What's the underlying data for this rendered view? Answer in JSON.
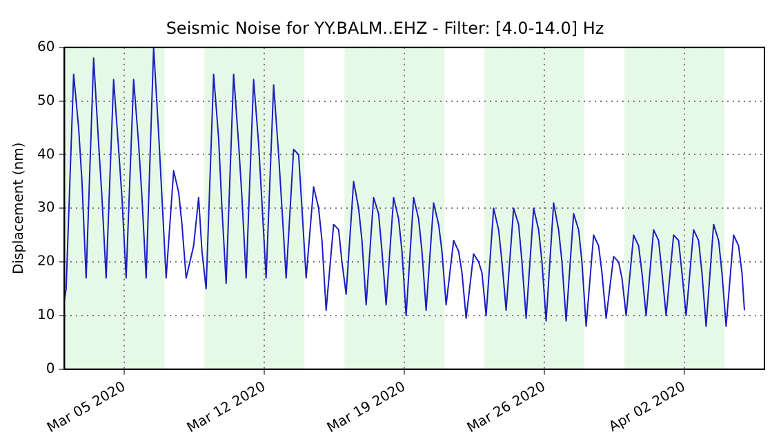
{
  "chart_data": {
    "type": "line",
    "title": "Seismic Noise for YY.BALM..EHZ - Filter: [4.0-14.0] Hz",
    "ylabel": "Displacement (nm)",
    "xlim": [
      "2020-03-02",
      "2020-04-06"
    ],
    "ylim": [
      0,
      60
    ],
    "xticks": [
      {
        "value": "2020-03-05",
        "label": "Mar 05 2020"
      },
      {
        "value": "2020-03-12",
        "label": "Mar 12 2020"
      },
      {
        "value": "2020-03-19",
        "label": "Mar 19 2020"
      },
      {
        "value": "2020-03-26",
        "label": "Mar 26 2020"
      },
      {
        "value": "2020-04-02",
        "label": "Apr 02 2020"
      }
    ],
    "yticks": [
      0,
      10,
      20,
      30,
      40,
      50,
      60
    ],
    "grid": true,
    "legend": false,
    "marker": "none",
    "line_style": "solid",
    "bands": [
      {
        "axis": "x",
        "from": "2020-03-02",
        "to": "2020-03-07",
        "color": "#e6f9e6"
      },
      {
        "axis": "x",
        "from": "2020-03-09",
        "to": "2020-03-14",
        "color": "#e6f9e6"
      },
      {
        "axis": "x",
        "from": "2020-03-16",
        "to": "2020-03-21",
        "color": "#e6f9e6"
      },
      {
        "axis": "x",
        "from": "2020-03-23",
        "to": "2020-03-28",
        "color": "#e6f9e6"
      },
      {
        "axis": "x",
        "from": "2020-03-30",
        "to": "2020-04-04",
        "color": "#e6f9e6"
      }
    ],
    "series": [
      {
        "color": "#1c1cc4",
        "x": [
          "2020-03-02T00:00",
          "2020-03-02T02:00",
          "2020-03-02T11:00",
          "2020-03-02T17:00",
          "2020-03-02T21:00",
          "2020-03-03T02:00",
          "2020-03-03T11:00",
          "2020-03-03T17:00",
          "2020-03-03T21:00",
          "2020-03-04T02:00",
          "2020-03-04T11:00",
          "2020-03-04T17:00",
          "2020-03-04T21:00",
          "2020-03-05T02:00",
          "2020-03-05T11:00",
          "2020-03-05T17:00",
          "2020-03-05T21:00",
          "2020-03-06T02:00",
          "2020-03-06T11:00",
          "2020-03-06T17:00",
          "2020-03-06T21:00",
          "2020-03-07T02:00",
          "2020-03-07T11:00",
          "2020-03-07T17:00",
          "2020-03-07T21:00",
          "2020-03-08T02:00",
          "2020-03-08T11:00",
          "2020-03-08T17:00",
          "2020-03-08T21:00",
          "2020-03-09T02:00",
          "2020-03-09T11:00",
          "2020-03-09T17:00",
          "2020-03-09T21:00",
          "2020-03-10T02:00",
          "2020-03-10T11:00",
          "2020-03-10T17:00",
          "2020-03-10T21:00",
          "2020-03-11T02:00",
          "2020-03-11T11:00",
          "2020-03-11T17:00",
          "2020-03-11T21:00",
          "2020-03-12T02:00",
          "2020-03-12T11:00",
          "2020-03-12T17:00",
          "2020-03-12T21:00",
          "2020-03-13T02:00",
          "2020-03-13T11:00",
          "2020-03-13T17:00",
          "2020-03-13T21:00",
          "2020-03-14T02:00",
          "2020-03-14T11:00",
          "2020-03-14T17:00",
          "2020-03-14T21:00",
          "2020-03-15T02:00",
          "2020-03-15T11:00",
          "2020-03-15T17:00",
          "2020-03-15T21:00",
          "2020-03-16T02:00",
          "2020-03-16T11:00",
          "2020-03-16T17:00",
          "2020-03-16T21:00",
          "2020-03-17T02:00",
          "2020-03-17T11:00",
          "2020-03-17T17:00",
          "2020-03-17T21:00",
          "2020-03-18T02:00",
          "2020-03-18T11:00",
          "2020-03-18T17:00",
          "2020-03-18T21:00",
          "2020-03-19T02:00",
          "2020-03-19T11:00",
          "2020-03-19T17:00",
          "2020-03-19T21:00",
          "2020-03-20T02:00",
          "2020-03-20T11:00",
          "2020-03-20T17:00",
          "2020-03-20T21:00",
          "2020-03-21T02:00",
          "2020-03-21T11:00",
          "2020-03-21T17:00",
          "2020-03-21T21:00",
          "2020-03-22T02:00",
          "2020-03-22T11:00",
          "2020-03-22T17:00",
          "2020-03-22T21:00",
          "2020-03-23T02:00",
          "2020-03-23T11:00",
          "2020-03-23T17:00",
          "2020-03-23T21:00",
          "2020-03-24T02:00",
          "2020-03-24T11:00",
          "2020-03-24T17:00",
          "2020-03-24T21:00",
          "2020-03-25T02:00",
          "2020-03-25T11:00",
          "2020-03-25T17:00",
          "2020-03-25T21:00",
          "2020-03-26T02:00",
          "2020-03-26T11:00",
          "2020-03-26T17:00",
          "2020-03-26T21:00",
          "2020-03-27T02:00",
          "2020-03-27T11:00",
          "2020-03-27T17:00",
          "2020-03-27T21:00",
          "2020-03-28T02:00",
          "2020-03-28T11:00",
          "2020-03-28T17:00",
          "2020-03-28T21:00",
          "2020-03-29T02:00",
          "2020-03-29T11:00",
          "2020-03-29T17:00",
          "2020-03-29T21:00",
          "2020-03-30T02:00",
          "2020-03-30T11:00",
          "2020-03-30T17:00",
          "2020-03-30T21:00",
          "2020-03-31T02:00",
          "2020-03-31T11:00",
          "2020-03-31T17:00",
          "2020-03-31T21:00",
          "2020-04-01T02:00",
          "2020-04-01T11:00",
          "2020-04-01T17:00",
          "2020-04-01T21:00",
          "2020-04-02T02:00",
          "2020-04-02T11:00",
          "2020-04-02T17:00",
          "2020-04-02T21:00",
          "2020-04-03T02:00",
          "2020-04-03T11:00",
          "2020-04-03T17:00",
          "2020-04-03T21:00",
          "2020-04-04T02:00",
          "2020-04-04T11:00",
          "2020-04-04T17:00",
          "2020-04-04T21:00",
          "2020-04-05T00:00"
        ],
        "values": [
          13,
          15,
          55,
          45,
          35,
          17,
          58,
          42,
          32,
          17,
          54,
          41,
          32,
          17,
          54,
          42,
          32,
          17,
          60,
          44,
          32,
          17,
          37,
          33,
          27,
          17,
          23,
          32,
          22,
          15,
          55,
          43,
          30,
          16,
          55,
          42,
          32,
          17,
          54,
          42,
          31,
          17,
          53,
          40,
          30,
          17,
          41,
          40,
          30,
          17,
          34,
          30,
          24,
          11,
          27,
          26,
          20,
          14,
          35,
          30,
          24,
          12,
          32,
          29,
          22,
          12,
          32,
          28,
          22,
          10,
          32,
          28,
          22,
          11,
          31,
          27,
          22,
          12,
          24,
          22,
          18,
          9.5,
          21.5,
          20,
          18,
          10,
          30,
          26,
          20,
          11,
          30,
          27,
          20,
          9.5,
          30,
          26,
          20,
          9,
          31,
          26,
          20,
          9,
          29,
          26,
          20,
          8,
          25,
          23,
          18,
          9.5,
          21,
          20,
          17,
          10,
          25,
          23,
          18,
          10,
          26,
          24,
          18,
          10,
          25,
          24,
          18,
          10,
          26,
          24,
          18,
          8,
          27,
          24,
          18,
          8,
          25,
          23,
          18,
          11
        ]
      }
    ]
  }
}
